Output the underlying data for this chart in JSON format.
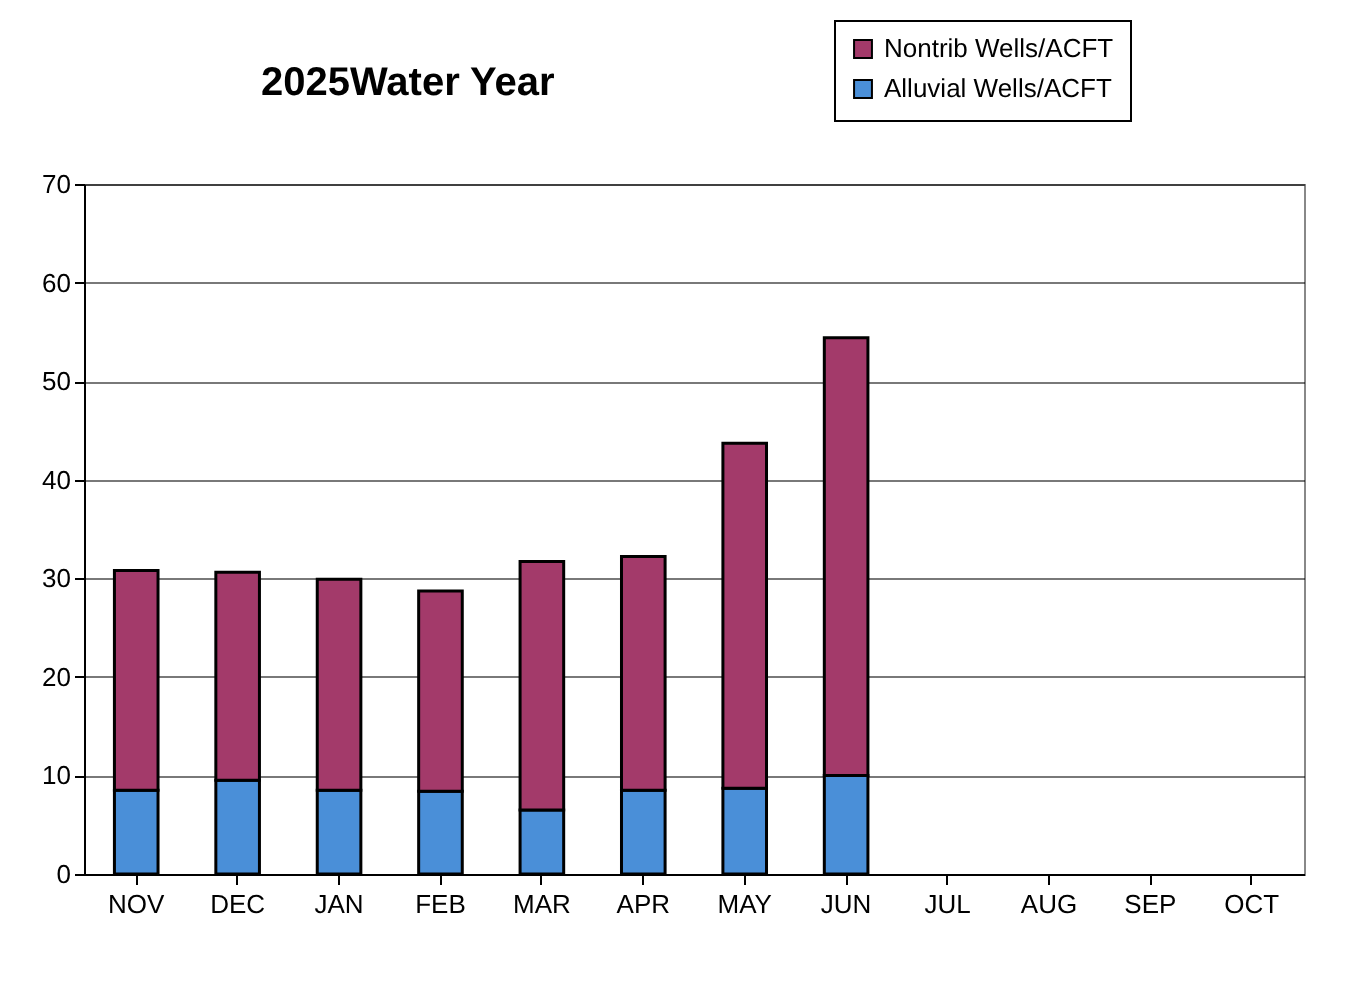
{
  "chart_data": {
    "type": "bar",
    "title": "2025Water Year",
    "stacked": true,
    "legend": "top right",
    "grid": "y",
    "categories": [
      "NOV",
      "DEC",
      "JAN",
      "FEB",
      "MAR",
      "APR",
      "MAY",
      "JUN",
      "JUL",
      "AUG",
      "SEP",
      "OCT"
    ],
    "series": [
      {
        "name": "Alluvial Wells/ACFT",
        "color": "#4a8fd8",
        "values": [
          8.5,
          9.5,
          8.5,
          8.4,
          6.5,
          8.5,
          8.7,
          10,
          null,
          null,
          null,
          null
        ]
      },
      {
        "name": "Nontrib Wells/ACFT",
        "color": "#a33a6a",
        "values": [
          22.3,
          21.1,
          21.4,
          20.3,
          25.2,
          23.7,
          35,
          44.4,
          null,
          null,
          null,
          null
        ]
      }
    ],
    "ylim": [
      0,
      70
    ],
    "yticks": [
      0,
      10,
      20,
      30,
      40,
      50,
      60,
      70
    ]
  }
}
